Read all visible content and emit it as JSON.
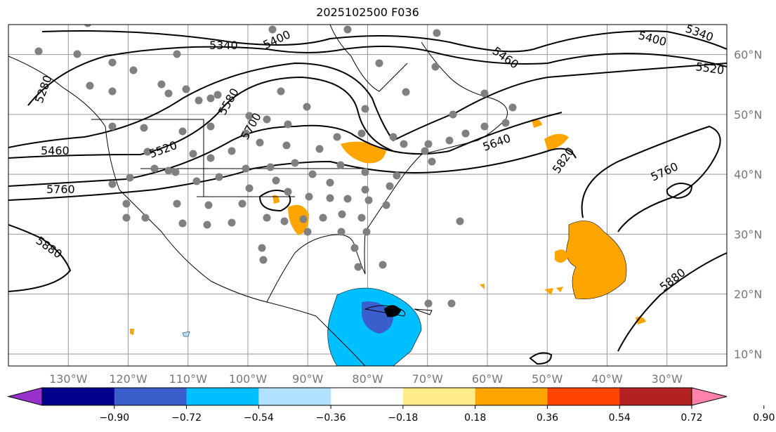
{
  "title": "2025102500 F036",
  "map": {
    "lon_range": [
      -140,
      -20
    ],
    "lat_range": [
      8,
      65
    ],
    "lon_ticks": [
      -130,
      -120,
      -110,
      -100,
      -90,
      -80,
      -70,
      -60,
      -50,
      -40,
      -30
    ],
    "lon_labels": [
      "130°W",
      "120°W",
      "110°W",
      "100°W",
      "90°W",
      "80°W",
      "70°W",
      "60°W",
      "50°W",
      "40°W",
      "30°W"
    ],
    "lat_ticks": [
      60,
      50,
      40,
      30,
      20,
      10
    ],
    "lat_labels": [
      "60°N",
      "50°N",
      "40°N",
      "30°N",
      "20°N",
      "10°N"
    ],
    "contour_labels": [
      "5340",
      "5400",
      "5580",
      "5700",
      "5280",
      "5460",
      "5520",
      "5760",
      "5880",
      "5400",
      "5340",
      "5460",
      "5520",
      "5640",
      "5820",
      "5760",
      "5880"
    ]
  },
  "colorbar": {
    "colors": [
      "#9932cc",
      "#00008b",
      "#3a5fcd",
      "#00bfff",
      "#b0e2ff",
      "#ffffff",
      "#ffec8b",
      "#ffa500",
      "#ff4500",
      "#b22222",
      "#ff82ab"
    ],
    "tick_labels": [
      "−0.90",
      "−0.72",
      "−0.54",
      "−0.36",
      "−0.18",
      "0.18",
      "0.36",
      "0.54",
      "0.72",
      "0.90"
    ]
  }
}
